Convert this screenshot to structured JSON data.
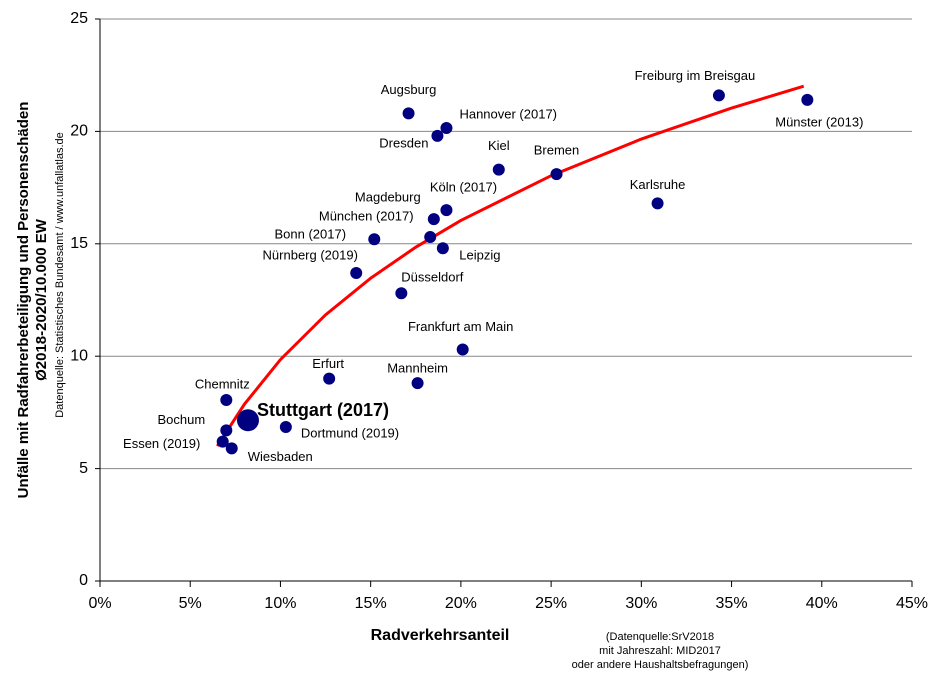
{
  "chart_data": {
    "type": "scatter",
    "y_label_lines": [
      "Unfälle mit Radfahrerbeteiligung und Personenschäden",
      "Ø2018-2020/10.000 EW"
    ],
    "source": "Datenquelle: Statistisches Bundesamt / www.unfallatlas.de",
    "x_label": "Radverkehrsanteil",
    "note_lines": [
      "(Datenquelle:SrV2018",
      "mit Jahreszahl: MID2017",
      "oder andere Haushaltsbefragungen)"
    ],
    "xlim": [
      0,
      45
    ],
    "xticks": [
      {
        "value": 0,
        "label": "0%"
      },
      {
        "value": 5,
        "label": "5%"
      },
      {
        "value": 10,
        "label": "10%"
      },
      {
        "value": 15,
        "label": "15%"
      },
      {
        "value": 20,
        "label": "20%"
      },
      {
        "value": 25,
        "label": "25%"
      },
      {
        "value": 30,
        "label": "30%"
      },
      {
        "value": 35,
        "label": "35%"
      },
      {
        "value": 40,
        "label": "40%"
      },
      {
        "value": 45,
        "label": "45%"
      }
    ],
    "ylim": [
      0,
      25
    ],
    "yticks": [
      0,
      5,
      10,
      15,
      20,
      25
    ],
    "grid": true,
    "color": "#000080",
    "labels": [
      "Augsburg",
      "Hannover (2017)",
      "Dresden",
      "Kiel",
      "Bremen",
      "Freiburg im Breisgau",
      "Münster (2013)",
      "Karlsruhe",
      "Köln (2017)",
      "Magdeburg",
      "München (2017)",
      "Bonn (2017)",
      "Leipzig",
      "Nürnberg (2019)",
      "Düsseldorf",
      "Frankfurt am Main",
      "Erfurt",
      "Mannheim",
      "Chemnitz",
      "Bochum",
      "Stuttgart (2017)",
      "Dortmund (2019)",
      "Essen (2019)",
      "Wiesbaden"
    ],
    "x": [
      17.1,
      19.2,
      18.7,
      22.1,
      25.3,
      34.3,
      39.2,
      30.9,
      19.2,
      18.5,
      18.3,
      15.2,
      19.0,
      14.2,
      16.7,
      20.1,
      12.7,
      17.6,
      7.0,
      7.0,
      8.2,
      10.3,
      6.8,
      7.3
    ],
    "y": [
      20.8,
      20.15,
      19.8,
      18.3,
      18.1,
      21.6,
      21.4,
      16.8,
      16.5,
      16.1,
      15.3,
      15.2,
      14.8,
      13.7,
      12.8,
      10.3,
      9.0,
      8.8,
      8.05,
      6.7,
      7.15,
      6.85,
      6.2,
      5.9
    ],
    "trendline": {
      "color": "#ff0000",
      "x": [
        6.5,
        8,
        10,
        12.5,
        15,
        17.5,
        20,
        25,
        30,
        35,
        39
      ],
      "y": [
        6.0,
        7.86,
        9.85,
        11.84,
        13.47,
        14.85,
        16.04,
        18.03,
        19.66,
        21.04,
        22.01
      ]
    }
  }
}
